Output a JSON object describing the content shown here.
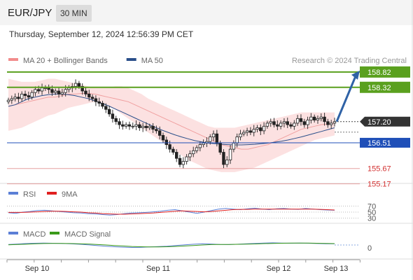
{
  "header": {
    "symbol": "EUR/JPY",
    "timeframe": "30 MIN"
  },
  "timestamp": "Thursday, September 12, 2024 12:56:39 PM CET",
  "legend": {
    "main": [
      {
        "label": "MA 20 + Bollinger Bands",
        "color": "#f28c8c"
      },
      {
        "label": "MA 50",
        "color": "#2a4f8a"
      }
    ],
    "credit": "Research © 2024 Trading Central",
    "rsi": [
      {
        "label": "RSI",
        "color": "#5b7fd6"
      },
      {
        "label": "9MA",
        "color": "#e02020"
      }
    ],
    "macd": [
      {
        "label": "MACD",
        "color": "#5b7fd6"
      },
      {
        "label": "MACD Signal",
        "color": "#3a9a1a"
      }
    ]
  },
  "colors": {
    "green_level": "#5aa01e",
    "blue_level": "#1f4fb8",
    "red_level": "#d23030",
    "current": "#333333",
    "arrow": "#2f62a6"
  },
  "chart_data": {
    "type": "candlestick",
    "price_range": [
      155.0,
      159.0
    ],
    "x_ticks": [
      "Sep 10",
      "Sep 11",
      "Sep 12",
      "Sep 13"
    ],
    "levels": [
      {
        "value": "158.82",
        "style": "green"
      },
      {
        "value": "158.32",
        "style": "green"
      },
      {
        "value": "157.20",
        "style": "current"
      },
      {
        "value": "156.51",
        "style": "blue"
      },
      {
        "value": "155.67",
        "style": "red"
      },
      {
        "value": "155.17",
        "style": "red"
      }
    ],
    "projection": {
      "from": 157.2,
      "to": 158.82
    },
    "closes": [
      157.9,
      157.95,
      158.0,
      157.95,
      158.1,
      158.05,
      158.0,
      158.15,
      158.25,
      158.2,
      158.3,
      158.3,
      158.25,
      158.15,
      158.2,
      158.1,
      158.15,
      158.25,
      158.3,
      158.35,
      158.45,
      158.35,
      158.2,
      158.1,
      158.0,
      157.95,
      157.85,
      157.8,
      157.7,
      157.6,
      157.45,
      157.3,
      157.2,
      157.1,
      157.05,
      157.1,
      157.05,
      157.05,
      157.1,
      157.0,
      157.05,
      157.0,
      157.05,
      156.95,
      156.9,
      156.75,
      156.6,
      156.45,
      156.3,
      156.2,
      156.0,
      155.8,
      155.9,
      156.05,
      156.15,
      156.25,
      156.35,
      156.45,
      156.5,
      156.55,
      156.7,
      156.8,
      156.5,
      156.2,
      155.8,
      155.95,
      156.3,
      156.5,
      156.7,
      156.8,
      156.85,
      156.9,
      156.85,
      156.95,
      157.0,
      156.9,
      157.05,
      157.15,
      157.2,
      157.1,
      157.05,
      157.15,
      157.2,
      157.1,
      157.05,
      157.15,
      157.3,
      157.2,
      157.1,
      157.25,
      157.35,
      157.25,
      157.3,
      157.35,
      157.2,
      157.1,
      157.15,
      157.2
    ],
    "ma20": [
      157.7,
      157.75,
      157.8,
      157.85,
      157.9,
      157.95,
      158.0,
      158.0,
      158.05,
      158.1,
      158.1,
      158.12,
      158.12,
      158.1,
      158.05,
      158.0,
      157.95,
      157.9,
      157.85,
      157.75,
      157.65,
      157.55,
      157.45,
      157.35,
      157.25,
      157.15,
      157.05,
      156.95,
      156.85,
      156.75,
      156.65,
      156.55,
      156.45,
      156.4,
      156.35,
      156.3,
      156.3,
      156.35,
      156.4,
      156.45,
      156.55,
      156.65,
      156.75,
      156.85,
      156.95,
      157.0,
      157.05,
      157.1,
      157.12,
      157.15
    ],
    "upper_band": [
      158.6,
      158.55,
      158.5,
      158.5,
      158.5,
      158.55,
      158.6,
      158.6,
      158.55,
      158.5,
      158.45,
      158.4,
      158.35,
      158.3,
      158.3,
      158.3,
      158.35,
      158.35,
      158.3,
      158.2,
      158.1,
      157.95,
      157.85,
      157.75,
      157.65,
      157.55,
      157.45,
      157.35,
      157.25,
      157.15,
      157.05,
      157.0,
      157.0,
      157.0,
      157.0,
      157.05,
      157.1,
      157.15,
      157.2,
      157.25,
      157.3,
      157.35,
      157.4,
      157.45,
      157.5,
      157.5,
      157.5,
      157.5,
      157.5,
      157.5
    ],
    "lower_band": [
      156.9,
      156.95,
      157.0,
      157.1,
      157.2,
      157.3,
      157.4,
      157.45,
      157.55,
      157.65,
      157.7,
      157.75,
      157.8,
      157.85,
      157.8,
      157.7,
      157.6,
      157.45,
      157.3,
      157.15,
      157.0,
      156.85,
      156.7,
      156.55,
      156.4,
      156.25,
      156.1,
      155.95,
      155.85,
      155.75,
      155.65,
      155.6,
      155.55,
      155.55,
      155.55,
      155.6,
      155.65,
      155.7,
      155.8,
      155.9,
      156.0,
      156.1,
      156.2,
      156.3,
      156.4,
      156.5,
      156.6,
      156.65,
      156.7,
      156.75
    ],
    "ma50": [
      157.7,
      157.75,
      157.85,
      157.95,
      158.0,
      158.05,
      158.08,
      158.1,
      158.1,
      158.08,
      158.05,
      158.0,
      157.95,
      157.88,
      157.8,
      157.72,
      157.62,
      157.52,
      157.42,
      157.32,
      157.22,
      157.12,
      157.02,
      156.93,
      156.85,
      156.77,
      156.7,
      156.64,
      156.58,
      156.54,
      156.5,
      156.48,
      156.46,
      156.45,
      156.44,
      156.44,
      156.45,
      156.46,
      156.48,
      156.5,
      156.53,
      156.56,
      156.6,
      156.65,
      156.7,
      156.76,
      156.82,
      156.88,
      156.94,
      157.0
    ],
    "rsi": {
      "ticks": [
        "70",
        "50",
        "30"
      ],
      "values": [
        48,
        46,
        50,
        52,
        55,
        56,
        54,
        52,
        50,
        48,
        47,
        45,
        44,
        42,
        40,
        42,
        45,
        47,
        48,
        49,
        51,
        53,
        56,
        58,
        54,
        50,
        46,
        50,
        55,
        60,
        62,
        60,
        58,
        61,
        63,
        60,
        58,
        61,
        62,
        60,
        59,
        62,
        60,
        58,
        57,
        56
      ],
      "ma9": [
        49,
        49,
        49,
        50,
        51,
        52,
        53,
        53,
        52,
        51,
        50,
        48,
        47,
        45,
        44,
        43,
        43,
        44,
        45,
        46,
        47,
        49,
        51,
        53,
        54,
        53,
        52,
        51,
        52,
        54,
        56,
        58,
        59,
        59,
        60,
        60,
        60,
        60,
        60,
        60,
        60,
        60,
        60,
        59,
        58,
        57
      ]
    },
    "macd": {
      "ticks": [
        "0"
      ],
      "values": [
        0.05,
        0.1,
        0.15,
        0.18,
        0.2,
        0.18,
        0.16,
        0.12,
        0.08,
        0.02,
        -0.05,
        -0.12,
        -0.18,
        -0.22,
        -0.25,
        -0.24,
        -0.2,
        -0.16,
        -0.12,
        -0.05,
        0.02,
        0.08,
        0.12,
        0.1,
        0.06,
        0.04,
        0.08,
        0.12,
        0.16,
        0.2,
        0.22,
        0.2,
        0.18,
        0.2,
        0.18,
        0.15,
        0.13,
        0.12
      ],
      "signal": [
        0.02,
        0.05,
        0.08,
        0.12,
        0.15,
        0.16,
        0.16,
        0.15,
        0.13,
        0.1,
        0.06,
        0.01,
        -0.05,
        -0.1,
        -0.15,
        -0.18,
        -0.2,
        -0.2,
        -0.18,
        -0.14,
        -0.1,
        -0.05,
        0.0,
        0.04,
        0.06,
        0.06,
        0.07,
        0.09,
        0.11,
        0.14,
        0.16,
        0.18,
        0.19,
        0.19,
        0.19,
        0.18,
        0.16,
        0.14
      ]
    }
  }
}
